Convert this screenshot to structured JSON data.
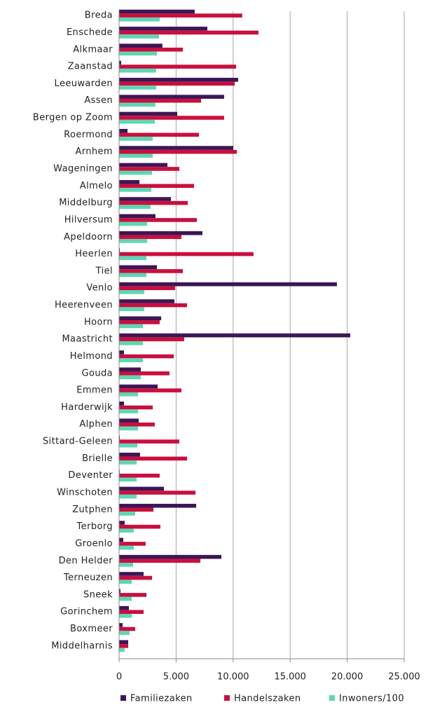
{
  "chart_data": {
    "type": "hbar",
    "categories": [
      "Breda",
      "Enschede",
      "Alkmaar",
      "Zaanstad",
      "Leeuwarden",
      "Assen",
      "Bergen op Zoom",
      "Roermond",
      "Arnhem",
      "Wageningen",
      "Almelo",
      "Middelburg",
      "Hilversum",
      "Apeldoorn",
      "Heerlen",
      "Tiel",
      "Venlo",
      "Heerenveen",
      "Hoorn",
      "Maastricht",
      "Helmond",
      "Gouda",
      "Emmen",
      "Harderwijk",
      "Alphen",
      "Sittard-Geleen",
      "Brielle",
      "Deventer",
      "Winschoten",
      "Zutphen",
      "Terborg",
      "Groenlo",
      "Den Helder",
      "Terneuzen",
      "Sneek",
      "Gorinchem",
      "Boxmeer",
      "Middelharnis"
    ],
    "series": [
      {
        "name": "Familiezaken",
        "color": "#3d1655",
        "values": [
          6630,
          7740,
          3800,
          180,
          10440,
          9210,
          5100,
          740,
          10010,
          4240,
          1780,
          4550,
          3190,
          7310,
          60,
          3320,
          19100,
          4850,
          3690,
          20270,
          430,
          1900,
          3380,
          430,
          1720,
          60,
          1840,
          50,
          3930,
          6760,
          490,
          370,
          8970,
          2150,
          120,
          860,
          310,
          800
        ]
      },
      {
        "name": "Handelszaken",
        "color": "#c8103e",
        "values": [
          10800,
          12220,
          5590,
          10260,
          10140,
          7190,
          9210,
          7000,
          10320,
          5280,
          6570,
          6020,
          6820,
          5470,
          11790,
          5590,
          4910,
          5960,
          3560,
          5710,
          4790,
          4420,
          5470,
          2950,
          3130,
          5280,
          5960,
          3560,
          6700,
          3010,
          3620,
          2330,
          7130,
          2890,
          2400,
          2150,
          1410,
          800
        ]
      },
      {
        "name": "Inwoners/100",
        "color": "#5fd6b4",
        "values": [
          3560,
          3500,
          3320,
          3250,
          3250,
          3190,
          3130,
          2950,
          2950,
          2890,
          2830,
          2760,
          2460,
          2460,
          2400,
          2400,
          2210,
          2210,
          2090,
          2090,
          2090,
          1900,
          1660,
          1660,
          1660,
          1600,
          1540,
          1540,
          1540,
          1410,
          1290,
          1290,
          1230,
          1110,
          1110,
          1110,
          920,
          490
        ]
      }
    ],
    "xlim": [
      0,
      25000
    ],
    "xticks": [
      0,
      {
        "value": 5000,
        "label": "5.000"
      },
      {
        "value": 10000,
        "label": "10.000"
      },
      {
        "value": 15000,
        "label": "15.000"
      },
      {
        "value": 20000,
        "label": "20.000"
      },
      {
        "value": 25000,
        "label": "25.000"
      }
    ],
    "grid": true,
    "legend": "bottom"
  }
}
